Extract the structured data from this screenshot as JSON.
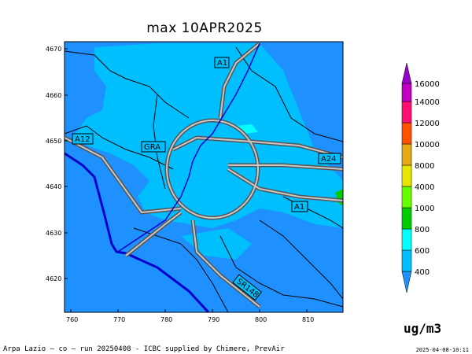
{
  "title": "max 10APR2025",
  "unit": "ug/m3",
  "footer": "Arpa Lazio — co — run 20250408 - ICBC supplied by Chimere, PrevAir",
  "timestamp": "2025-04-08-10:11",
  "x_ticks": [
    "760",
    "770",
    "780",
    "790",
    "800",
    "810"
  ],
  "y_ticks": [
    "4670",
    "4660",
    "4650",
    "4640",
    "4630",
    "4620"
  ],
  "road_labels": [
    "A1",
    "A12",
    "GRA",
    "A24",
    "A1",
    "SR148"
  ],
  "legend": {
    "levels": [
      "400",
      "600",
      "800",
      "1000",
      "4000",
      "8000",
      "10000",
      "12000",
      "14000",
      "16000"
    ],
    "colors": [
      "#1e90ff",
      "#00bfff",
      "#00ffff",
      "#00cc00",
      "#66ff00",
      "#e6e600",
      "#e6a817",
      "#ff5000",
      "#ff1070",
      "#c000c0",
      "#9900cc"
    ]
  },
  "map_colors": {
    "background": "#1e90ff",
    "light": "#00bfff",
    "coast": "#0000cc"
  }
}
